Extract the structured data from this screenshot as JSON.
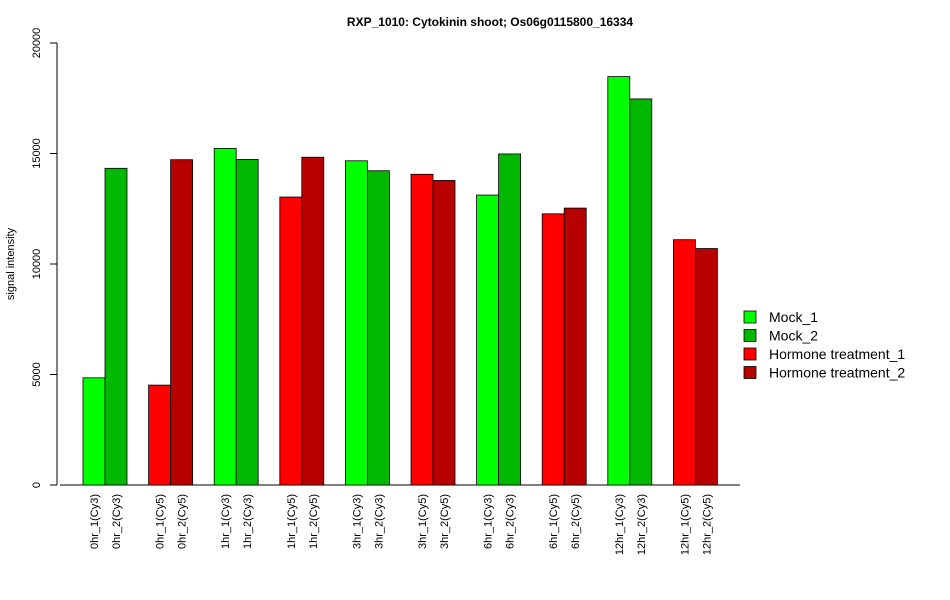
{
  "chart_data": {
    "type": "bar",
    "title": "RXP_1010: Cytokinin shoot; Os06g0115800_16334",
    "ylabel": "signal intensity",
    "xlabel": "",
    "ylim": [
      0,
      20000
    ],
    "yticks": [
      0,
      5000,
      10000,
      15000,
      20000
    ],
    "series": [
      {
        "name": "Mock_1",
        "color": "#00ff00"
      },
      {
        "name": "Mock_2",
        "color": "#00b800"
      },
      {
        "name": "Hormone treatment_1",
        "color": "#ff0000"
      },
      {
        "name": "Hormone treatment_2",
        "color": "#b80000"
      }
    ],
    "bars": [
      {
        "label": "0hr_1(Cy3)",
        "value": 4850,
        "series": 0
      },
      {
        "label": "0hr_2(Cy3)",
        "value": 14330,
        "series": 1
      },
      {
        "label": "0hr_1(Cy5)",
        "value": 4520,
        "series": 2
      },
      {
        "label": "0hr_2(Cy5)",
        "value": 14720,
        "series": 3
      },
      {
        "label": "1hr_1(Cy3)",
        "value": 15230,
        "series": 0
      },
      {
        "label": "1hr_2(Cy3)",
        "value": 14730,
        "series": 1
      },
      {
        "label": "1hr_1(Cy5)",
        "value": 13030,
        "series": 2
      },
      {
        "label": "1hr_2(Cy5)",
        "value": 14830,
        "series": 3
      },
      {
        "label": "3hr_1(Cy3)",
        "value": 14670,
        "series": 0
      },
      {
        "label": "3hr_2(Cy3)",
        "value": 14220,
        "series": 1
      },
      {
        "label": "3hr_1(Cy5)",
        "value": 14060,
        "series": 2
      },
      {
        "label": "3hr_2(Cy5)",
        "value": 13780,
        "series": 3
      },
      {
        "label": "6hr_1(Cy3)",
        "value": 13120,
        "series": 0
      },
      {
        "label": "6hr_2(Cy3)",
        "value": 14980,
        "series": 1
      },
      {
        "label": "6hr_1(Cy5)",
        "value": 12270,
        "series": 2
      },
      {
        "label": "6hr_2(Cy5)",
        "value": 12530,
        "series": 3
      },
      {
        "label": "12hr_1(Cy3)",
        "value": 18480,
        "series": 0
      },
      {
        "label": "12hr_2(Cy3)",
        "value": 17470,
        "series": 1
      },
      {
        "label": "12hr_1(Cy5)",
        "value": 11100,
        "series": 2
      },
      {
        "label": "12hr_2(Cy5)",
        "value": 10700,
        "series": 3
      }
    ],
    "legend_position": "right",
    "grid": false
  }
}
